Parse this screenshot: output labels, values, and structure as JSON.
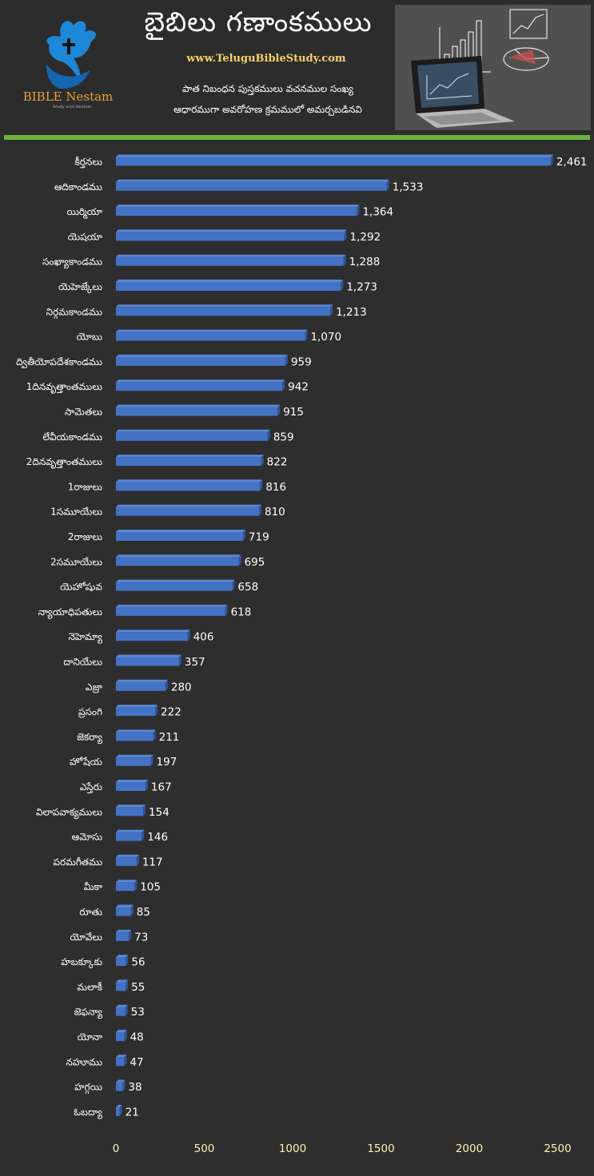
{
  "header": {
    "title": "బైబిలు గణాంకములు",
    "website": "www.TeluguBibleStudy.com",
    "subtitle_line1": "పాత నిబంధన పుస్తకములు వచనముల సంఖ్య",
    "subtitle_line2": "ఆధారముగా అవరోహణ క్రమములో అమర్చబడినవి",
    "brand": "BIBLE Nestam",
    "brand_tagline": "Study with Nestam"
  },
  "colors": {
    "background": "#2e2e2e",
    "bar_front": "#4472c4",
    "bar_top": "#5b87d6",
    "bar_side": "#2f5597",
    "accent_green": "#6db33f",
    "label_text": "#ffffff",
    "axis_text": "#fff2b3",
    "logo_blue": "#1e88d8",
    "brand_orange": "#e8a23a"
  },
  "chart_data": {
    "type": "bar",
    "orientation": "horizontal",
    "title": "పాత నిబంధన పుస్తకములు వచనముల సంఖ్య",
    "xlabel": "",
    "ylabel": "",
    "xlim": [
      0,
      2500
    ],
    "xticks": [
      "0",
      "500",
      "1000",
      "1500",
      "2000",
      "2500"
    ],
    "xtick_values": [
      0,
      500,
      1000,
      1500,
      2000,
      2500
    ],
    "grid": false,
    "categories": [
      "కీర్తనలు",
      "ఆదికాండము",
      "యిర్మియా",
      "యెషయా",
      "సంఖ్యాకాండము",
      "యెహెజ్కేలు",
      "నిర్గమకాండము",
      "యోబు",
      "ద్వితీయోపదేశకాండము",
      "1దినవృత్తాంతములు",
      "సామెతలు",
      "లేవీయకాండము",
      "2దినవృత్తాంతములు",
      "1రాజులు",
      "1సమూయేలు",
      "2రాజులు",
      "2సమూయేలు",
      "యెహోషువ",
      "న్యాయాధిపతులు",
      "నెహెమ్యా",
      "దానియేలు",
      "ఎజ్రా",
      "ప్రసంగి",
      "జెకర్యా",
      "హోషేయ",
      "ఎస్తేరు",
      "విలాపవాక్యములు",
      "ఆమోసు",
      "పరమగీతము",
      "మీకా",
      "రూతు",
      "యోవేలు",
      "హబక్కూకు",
      "మలాకీ",
      "జెఫన్యా",
      "యోనా",
      "నహూము",
      "హగ్గయి",
      "ఓబద్యా"
    ],
    "values": [
      2461,
      1533,
      1364,
      1292,
      1288,
      1273,
      1213,
      1070,
      959,
      942,
      915,
      859,
      822,
      816,
      810,
      719,
      695,
      658,
      618,
      406,
      357,
      280,
      222,
      211,
      197,
      167,
      154,
      146,
      117,
      105,
      85,
      73,
      56,
      55,
      53,
      48,
      47,
      38,
      21
    ],
    "value_labels": [
      "2,461",
      "1,533",
      "1,364",
      "1,292",
      "1,288",
      "1,273",
      "1,213",
      "1,070",
      "959",
      "942",
      "915",
      "859",
      "822",
      "816",
      "810",
      "719",
      "695",
      "658",
      "618",
      "406",
      "357",
      "280",
      "222",
      "211",
      "197",
      "167",
      "154",
      "146",
      "117",
      "105",
      "85",
      "73",
      "56",
      "55",
      "53",
      "48",
      "47",
      "38",
      "21"
    ]
  }
}
